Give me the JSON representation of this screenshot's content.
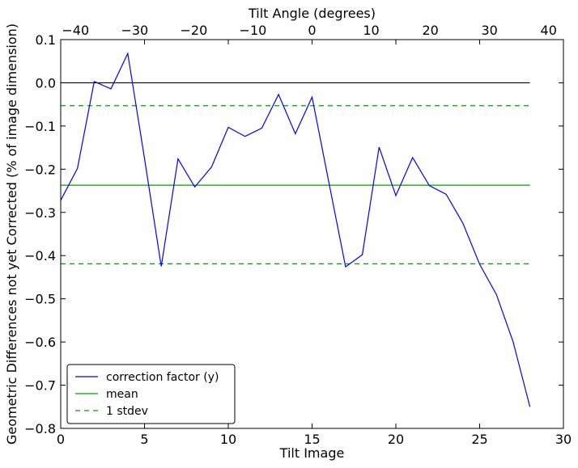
{
  "chart_data": {
    "type": "line",
    "xlabel": "Tilt Image",
    "ylabel": "Geometric Differences not yet Corrected (% of image dimension)",
    "top_xlabel": "Tilt Angle (degrees)",
    "xlim": [
      0,
      30
    ],
    "ylim": [
      -0.8,
      0.1
    ],
    "top_xlim": [
      -42.5,
      42.5
    ],
    "xticks": [
      0,
      5,
      10,
      15,
      20,
      25,
      30
    ],
    "yticks": [
      0.1,
      0.0,
      -0.1,
      -0.2,
      -0.3,
      -0.4,
      -0.5,
      -0.6,
      -0.7,
      -0.8
    ],
    "top_xticks": [
      -40,
      -30,
      -20,
      -10,
      0,
      10,
      20,
      30,
      40
    ],
    "xtick_labels": [
      "0",
      "5",
      "10",
      "15",
      "20",
      "25",
      "30"
    ],
    "ytick_labels": [
      "0.1",
      "0.0",
      "−0.1",
      "−0.2",
      "−0.3",
      "−0.4",
      "−0.5",
      "−0.6",
      "−0.7",
      "−0.8"
    ],
    "top_xtick_labels": [
      "−40",
      "−30",
      "−20",
      "−10",
      "0",
      "10",
      "20",
      "30",
      "40"
    ],
    "grid": false,
    "legend_position": "lower-left",
    "series": [
      {
        "name": "correction factor (y)",
        "color": "#0000ff",
        "style": "solid",
        "x": [
          0,
          1,
          2,
          3,
          4,
          5,
          6,
          7,
          8,
          9,
          10,
          11,
          12,
          13,
          14,
          15,
          16,
          17,
          18,
          19,
          20,
          21,
          22,
          23,
          24,
          25,
          26,
          27,
          28
        ],
        "y": [
          -0.272,
          -0.198,
          0.003,
          -0.014,
          0.068,
          -0.175,
          -0.425,
          -0.176,
          -0.241,
          -0.195,
          -0.103,
          -0.124,
          -0.105,
          -0.027,
          -0.118,
          -0.033,
          -0.23,
          -0.426,
          -0.398,
          -0.149,
          -0.261,
          -0.173,
          -0.238,
          -0.258,
          -0.325,
          -0.42,
          -0.49,
          -0.6,
          -0.75
        ]
      },
      {
        "name": "mean",
        "color": "#00a000",
        "style": "solid",
        "x": [
          0,
          28
        ],
        "y": [
          -0.237,
          -0.237
        ]
      },
      {
        "name": "1 stdev",
        "color": "#00a000",
        "style": "dashed",
        "x": [
          0,
          28
        ],
        "y": [
          -0.053,
          -0.053
        ]
      },
      {
        "name": "",
        "color": "#00a000",
        "style": "dashed",
        "x": [
          0,
          28
        ],
        "y": [
          -0.419,
          -0.419
        ]
      },
      {
        "name": "",
        "color": "#000000",
        "style": "solid",
        "x": [
          0,
          28
        ],
        "y": [
          0.0,
          0.0
        ]
      }
    ]
  }
}
